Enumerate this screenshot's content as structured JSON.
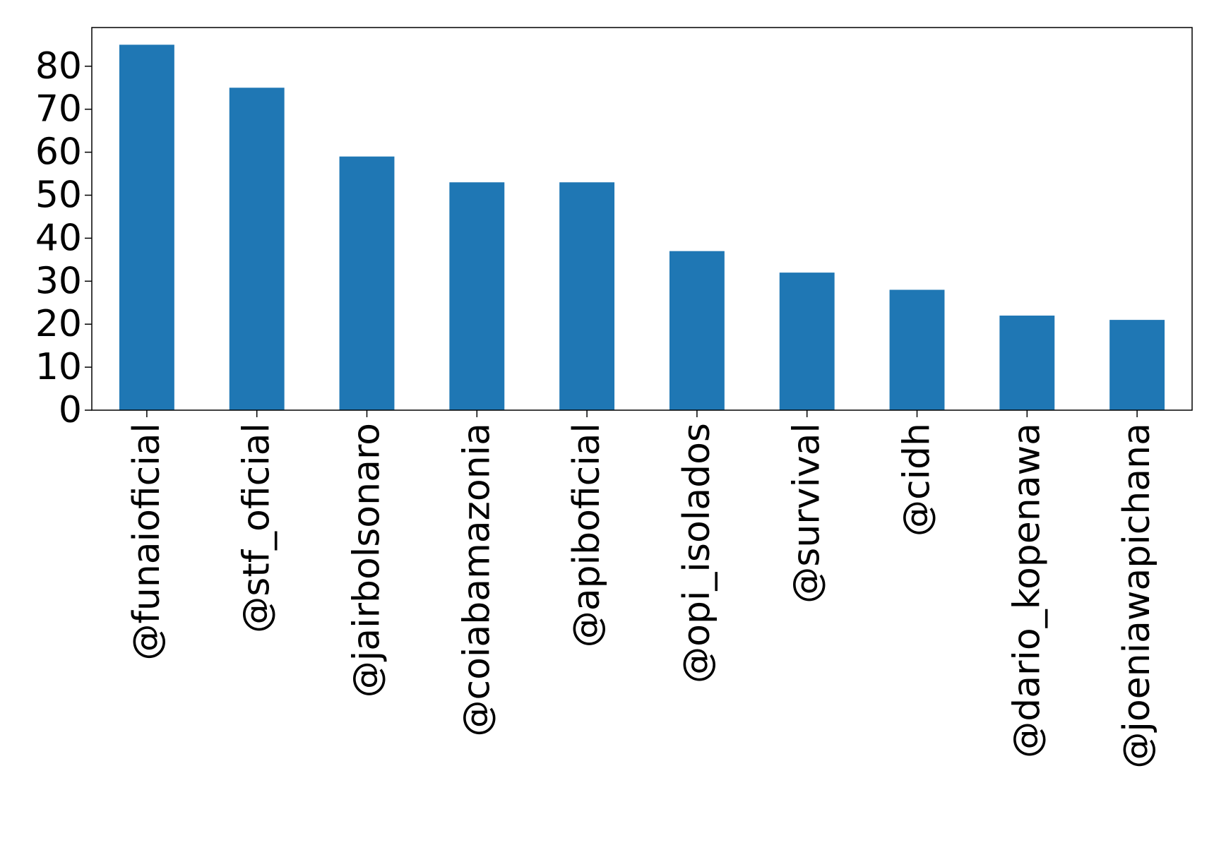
{
  "chart_data": {
    "type": "bar",
    "title": "",
    "xlabel": "",
    "ylabel": "",
    "categories": [
      "@funaioficial",
      "@stf_oficial",
      "@jairbolsonaro",
      "@coiabamazonia",
      "@apiboficial",
      "@opi_isolados",
      "@survival",
      "@cidh",
      "@dario_kopenawa",
      "@joeniawapichana"
    ],
    "values": [
      85,
      75,
      59,
      53,
      53,
      37,
      32,
      28,
      22,
      21
    ],
    "ylim": [
      0,
      89
    ],
    "yticks": [
      0,
      10,
      20,
      30,
      40,
      50,
      60,
      70,
      80
    ],
    "grid": false,
    "legend": "none",
    "bar_color": "#1f77b4"
  }
}
